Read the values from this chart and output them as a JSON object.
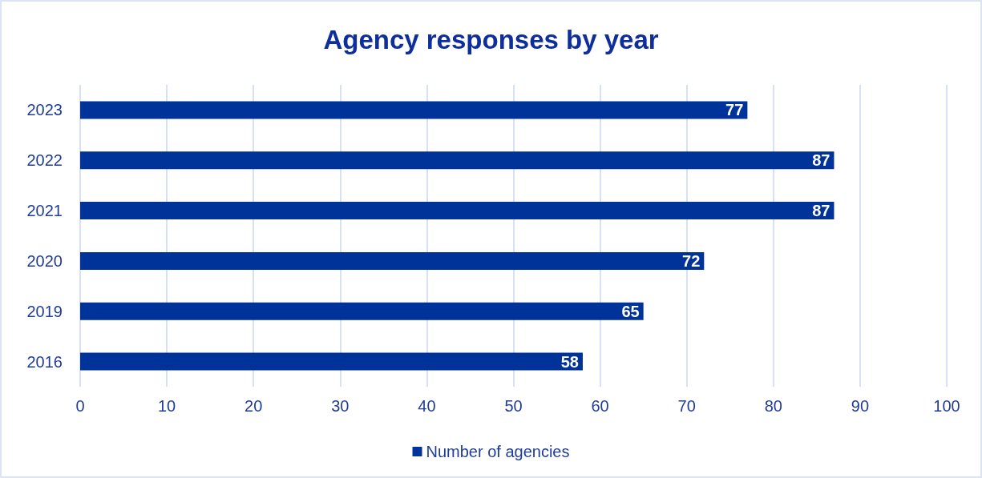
{
  "chart_data": {
    "type": "bar",
    "orientation": "horizontal",
    "title": "Agency responses by year",
    "categories": [
      "2023",
      "2022",
      "2021",
      "2020",
      "2019",
      "2016"
    ],
    "series": [
      {
        "name": "Number of agencies",
        "color": "#003399",
        "values": [
          77,
          87,
          87,
          72,
          65,
          58
        ]
      }
    ],
    "xlim": [
      0,
      100
    ],
    "xticks": [
      0,
      10,
      20,
      30,
      40,
      50,
      60,
      70,
      80,
      90,
      100
    ],
    "grid": "x",
    "legend": "bottom",
    "data_labels": true
  }
}
